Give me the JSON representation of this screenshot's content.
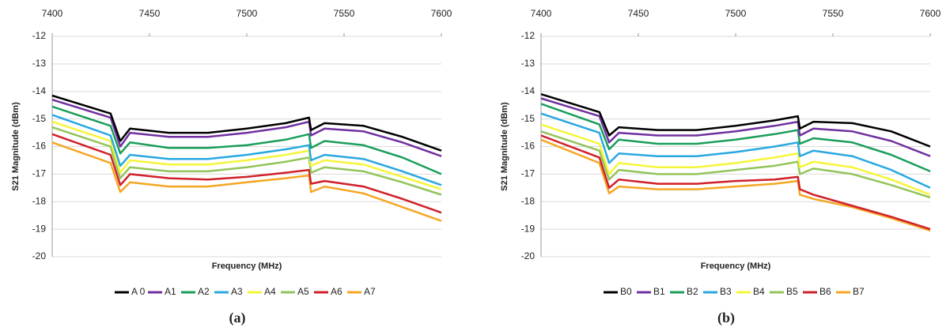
{
  "chart_data": [
    {
      "type": "line",
      "xlabel": "Frequency (MHz)",
      "ylabel": "S21 Magnitude (dBm)",
      "caption": "(a)",
      "x": [
        7400,
        7430,
        7435,
        7440,
        7460,
        7480,
        7500,
        7520,
        7532,
        7533,
        7540,
        7560,
        7580,
        7600
      ],
      "xlim": [
        7400,
        7600
      ],
      "xticks": [
        7400,
        7450,
        7500,
        7550,
        7600
      ],
      "ylim": [
        -20,
        -12
      ],
      "yticks": [
        -12,
        -13,
        -14,
        -15,
        -16,
        -17,
        -18,
        -19,
        -20
      ],
      "grid": true,
      "legend": "bottom",
      "series": [
        {
          "name": "A 0",
          "color": "#000000",
          "values": [
            -14.15,
            -14.8,
            -15.8,
            -15.35,
            -15.5,
            -15.5,
            -15.35,
            -15.15,
            -14.95,
            -15.4,
            -15.15,
            -15.25,
            -15.65,
            -16.15
          ]
        },
        {
          "name": "A1",
          "color": "#7030a0",
          "values": [
            -14.3,
            -14.95,
            -16.0,
            -15.5,
            -15.65,
            -15.65,
            -15.5,
            -15.3,
            -15.1,
            -15.6,
            -15.35,
            -15.45,
            -15.85,
            -16.35
          ]
        },
        {
          "name": "A2",
          "color": "#1a9e5a",
          "values": [
            -14.55,
            -15.25,
            -16.25,
            -15.85,
            -16.05,
            -16.05,
            -15.95,
            -15.75,
            -15.55,
            -16.05,
            -15.8,
            -15.95,
            -16.4,
            -17.0
          ]
        },
        {
          "name": "A3",
          "color": "#29a8e0",
          "values": [
            -14.85,
            -15.6,
            -16.7,
            -16.3,
            -16.45,
            -16.45,
            -16.3,
            -16.1,
            -15.95,
            -16.5,
            -16.3,
            -16.45,
            -16.9,
            -17.4
          ]
        },
        {
          "name": "A4",
          "color": "#f5f53a",
          "values": [
            -15.1,
            -15.8,
            -16.95,
            -16.5,
            -16.65,
            -16.65,
            -16.5,
            -16.3,
            -16.15,
            -16.7,
            -16.5,
            -16.65,
            -17.1,
            -17.55
          ]
        },
        {
          "name": "A5",
          "color": "#92c45a",
          "values": [
            -15.3,
            -16.0,
            -17.15,
            -16.75,
            -16.9,
            -16.9,
            -16.75,
            -16.55,
            -16.4,
            -16.95,
            -16.75,
            -16.9,
            -17.3,
            -17.75
          ]
        },
        {
          "name": "A6",
          "color": "#d0202a",
          "values": [
            -15.55,
            -16.3,
            -17.4,
            -17.0,
            -17.15,
            -17.2,
            -17.1,
            -16.95,
            -16.85,
            -17.35,
            -17.25,
            -17.45,
            -17.9,
            -18.4
          ]
        },
        {
          "name": "A7",
          "color": "#f5a623",
          "values": [
            -15.85,
            -16.6,
            -17.65,
            -17.3,
            -17.45,
            -17.45,
            -17.3,
            -17.15,
            -17.05,
            -17.65,
            -17.45,
            -17.7,
            -18.2,
            -18.7
          ]
        }
      ]
    },
    {
      "type": "line",
      "xlabel": "Frequency (MHz)",
      "ylabel": "S21 Magnitude (dBm)",
      "caption": "(b)",
      "x": [
        7400,
        7430,
        7435,
        7440,
        7460,
        7480,
        7500,
        7520,
        7532,
        7533,
        7540,
        7560,
        7580,
        7600
      ],
      "xlim": [
        7400,
        7600
      ],
      "xticks": [
        7400,
        7450,
        7500,
        7550,
        7600
      ],
      "ylim": [
        -20,
        -12
      ],
      "yticks": [
        -12,
        -13,
        -14,
        -15,
        -16,
        -17,
        -18,
        -19,
        -20
      ],
      "grid": true,
      "legend": "bottom",
      "series": [
        {
          "name": "B0",
          "color": "#000000",
          "values": [
            -14.1,
            -14.75,
            -15.6,
            -15.3,
            -15.4,
            -15.4,
            -15.25,
            -15.05,
            -14.9,
            -15.35,
            -15.1,
            -15.15,
            -15.45,
            -16.0
          ]
        },
        {
          "name": "B1",
          "color": "#7030a0",
          "values": [
            -14.25,
            -14.9,
            -15.85,
            -15.5,
            -15.6,
            -15.6,
            -15.45,
            -15.25,
            -15.1,
            -15.6,
            -15.35,
            -15.45,
            -15.8,
            -16.35
          ]
        },
        {
          "name": "B2",
          "color": "#1a9e5a",
          "values": [
            -14.45,
            -15.2,
            -16.1,
            -15.75,
            -15.9,
            -15.9,
            -15.75,
            -15.55,
            -15.4,
            -15.9,
            -15.7,
            -15.85,
            -16.3,
            -16.9
          ]
        },
        {
          "name": "B3",
          "color": "#29a8e0",
          "values": [
            -14.8,
            -15.5,
            -16.6,
            -16.25,
            -16.35,
            -16.35,
            -16.2,
            -16.0,
            -15.85,
            -16.35,
            -16.15,
            -16.35,
            -16.85,
            -17.5
          ]
        },
        {
          "name": "B4",
          "color": "#f5f53a",
          "values": [
            -15.2,
            -15.9,
            -17.0,
            -16.6,
            -16.75,
            -16.75,
            -16.6,
            -16.4,
            -16.25,
            -16.75,
            -16.55,
            -16.75,
            -17.2,
            -17.75
          ]
        },
        {
          "name": "B5",
          "color": "#92c45a",
          "values": [
            -15.45,
            -16.15,
            -17.2,
            -16.85,
            -17.0,
            -17.0,
            -16.85,
            -16.7,
            -16.55,
            -17.0,
            -16.8,
            -17.0,
            -17.4,
            -17.85
          ]
        },
        {
          "name": "B6",
          "color": "#d0202a",
          "values": [
            -15.6,
            -16.4,
            -17.5,
            -17.2,
            -17.35,
            -17.35,
            -17.25,
            -17.2,
            -17.1,
            -17.55,
            -17.75,
            -18.15,
            -18.55,
            -19.0
          ]
        },
        {
          "name": "B7",
          "color": "#f5a623",
          "values": [
            -15.75,
            -16.6,
            -17.7,
            -17.45,
            -17.55,
            -17.55,
            -17.45,
            -17.35,
            -17.25,
            -17.75,
            -17.9,
            -18.2,
            -18.6,
            -19.05
          ]
        }
      ]
    }
  ]
}
